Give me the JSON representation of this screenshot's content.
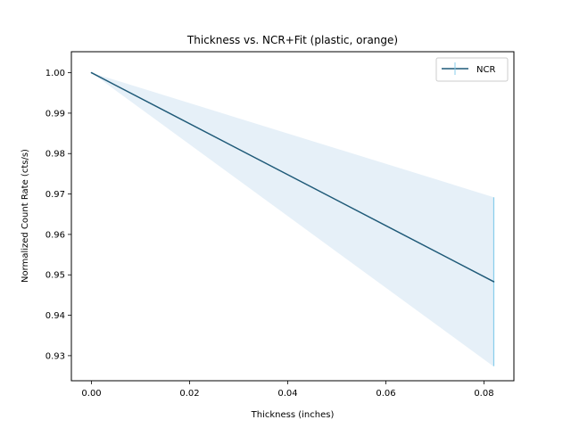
{
  "chart_data": {
    "type": "line",
    "title": "Thickness vs. NCR+Fit (plastic, orange)",
    "xlabel": "Thickness (inches)",
    "ylabel": "Normalized Count Rate (cts/s)",
    "xlim": [
      -0.0041,
      0.0861
    ],
    "ylim": [
      0.9238,
      1.0052
    ],
    "x_ticks": [
      0.0,
      0.02,
      0.04,
      0.06,
      0.08
    ],
    "x_tick_labels": [
      "0.00",
      "0.02",
      "0.04",
      "0.06",
      "0.08"
    ],
    "y_ticks": [
      0.93,
      0.94,
      0.95,
      0.96,
      0.97,
      0.98,
      0.99,
      1.0
    ],
    "y_tick_labels": [
      "0.93",
      "0.94",
      "0.95",
      "0.96",
      "0.97",
      "0.98",
      "0.99",
      "1.00"
    ],
    "grid": false,
    "legend_position": "top-right",
    "series": [
      {
        "name": "NCR",
        "color": "#1f5a78",
        "x": [
          0.0,
          0.082
        ],
        "y": [
          1.0,
          0.9483
        ],
        "yerr": [
          0.0,
          0.0209
        ]
      }
    ],
    "fit_band": {
      "color": "#dce9f5",
      "x": [
        0.0,
        0.082
      ],
      "lower": [
        1.0,
        0.9273
      ],
      "upper": [
        1.0,
        0.9692
      ]
    },
    "errorbar_color": "#87ceeb"
  }
}
